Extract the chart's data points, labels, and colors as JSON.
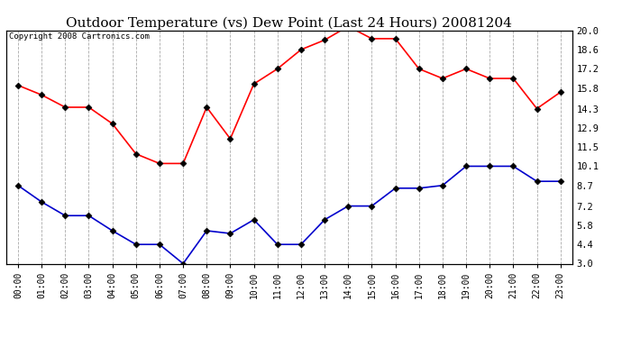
{
  "title": "Outdoor Temperature (vs) Dew Point (Last 24 Hours) 20081204",
  "copyright": "Copyright 2008 Cartronics.com",
  "hours": [
    "00:00",
    "01:00",
    "02:00",
    "03:00",
    "04:00",
    "05:00",
    "06:00",
    "07:00",
    "08:00",
    "09:00",
    "10:00",
    "11:00",
    "12:00",
    "13:00",
    "14:00",
    "15:00",
    "16:00",
    "17:00",
    "18:00",
    "19:00",
    "20:00",
    "21:00",
    "22:00",
    "23:00"
  ],
  "temp": [
    16.0,
    15.3,
    14.4,
    14.4,
    13.2,
    11.0,
    10.3,
    10.3,
    14.4,
    12.1,
    16.1,
    17.2,
    18.6,
    19.3,
    20.3,
    19.4,
    19.4,
    17.2,
    16.5,
    17.2,
    16.5,
    16.5,
    14.3,
    15.5
  ],
  "dew": [
    8.7,
    7.5,
    6.5,
    6.5,
    5.4,
    4.4,
    4.4,
    3.0,
    5.4,
    5.2,
    6.2,
    4.4,
    4.4,
    6.2,
    7.2,
    7.2,
    8.5,
    8.5,
    8.7,
    10.1,
    10.1,
    10.1,
    9.0,
    9.0
  ],
  "temp_color": "#ff0000",
  "dew_color": "#0000cc",
  "bg_color": "#ffffff",
  "grid_color": "#aaaaaa",
  "ylim": [
    3.0,
    20.0
  ],
  "yticks_right": [
    3.0,
    4.4,
    5.8,
    7.2,
    8.7,
    10.1,
    11.5,
    12.9,
    14.3,
    15.8,
    17.2,
    18.6,
    20.0
  ],
  "markersize": 3.5,
  "linewidth": 1.2,
  "title_fontsize": 11,
  "tick_fontsize": 7,
  "copyright_fontsize": 6.5
}
